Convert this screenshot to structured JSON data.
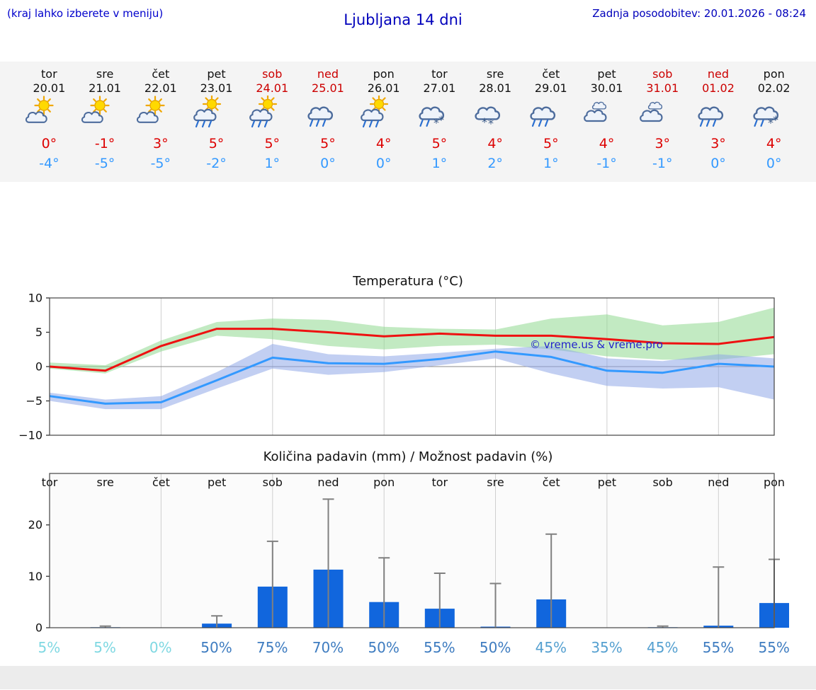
{
  "header": {
    "hint": "(kraj lahko izberete v meniju)",
    "title": "Ljubljana 14 dni",
    "updated": "Zadnja posodobitev: 20.01.2026 - 08:24"
  },
  "colors": {
    "link_blue": "#0000cc",
    "weekend_red": "#cc0000",
    "tmax_red": "#dd0000",
    "tmin_blue": "#3399ff",
    "bar_blue": "#1166dd",
    "whisker_gray": "#808080",
    "band_green": "#90d890",
    "band_blue": "#8fa8e8"
  },
  "days": [
    {
      "name": "tor",
      "date": "20.01",
      "weekend": false,
      "icon": "partly-sunny",
      "tmax": "0°",
      "tmin": "-4°"
    },
    {
      "name": "sre",
      "date": "21.01",
      "weekend": false,
      "icon": "partly-sunny",
      "tmax": "-1°",
      "tmin": "-5°"
    },
    {
      "name": "čet",
      "date": "22.01",
      "weekend": false,
      "icon": "partly-sunny",
      "tmax": "3°",
      "tmin": "-5°"
    },
    {
      "name": "pet",
      "date": "23.01",
      "weekend": false,
      "icon": "sun-rain",
      "tmax": "5°",
      "tmin": "-2°"
    },
    {
      "name": "sob",
      "date": "24.01",
      "weekend": true,
      "icon": "sun-rain",
      "tmax": "5°",
      "tmin": "1°"
    },
    {
      "name": "ned",
      "date": "25.01",
      "weekend": true,
      "icon": "rain",
      "tmax": "5°",
      "tmin": "0°"
    },
    {
      "name": "pon",
      "date": "26.01",
      "weekend": false,
      "icon": "sun-rain",
      "tmax": "4°",
      "tmin": "0°"
    },
    {
      "name": "tor",
      "date": "27.01",
      "weekend": false,
      "icon": "sleet",
      "tmax": "5°",
      "tmin": "1°"
    },
    {
      "name": "sre",
      "date": "28.01",
      "weekend": false,
      "icon": "snow",
      "tmax": "4°",
      "tmin": "2°"
    },
    {
      "name": "čet",
      "date": "29.01",
      "weekend": false,
      "icon": "rain",
      "tmax": "5°",
      "tmin": "1°"
    },
    {
      "name": "pet",
      "date": "30.01",
      "weekend": false,
      "icon": "cloudy",
      "tmax": "4°",
      "tmin": "-1°"
    },
    {
      "name": "sob",
      "date": "31.01",
      "weekend": true,
      "icon": "cloudy",
      "tmax": "3°",
      "tmin": "-1°"
    },
    {
      "name": "ned",
      "date": "01.02",
      "weekend": true,
      "icon": "rain",
      "tmax": "3°",
      "tmin": "0°"
    },
    {
      "name": "pon",
      "date": "02.02",
      "weekend": false,
      "icon": "sleet",
      "tmax": "4°",
      "tmin": "0°"
    }
  ],
  "chart_data": [
    {
      "type": "line",
      "title": "Temperatura (°C)",
      "categories": [
        "tor",
        "sre",
        "čet",
        "pet",
        "sob",
        "ned",
        "pon",
        "tor",
        "sre",
        "čet",
        "pet",
        "sob",
        "ned",
        "pon"
      ],
      "ylim": [
        -10,
        10
      ],
      "yticks": [
        -10,
        -5,
        0,
        5,
        10
      ],
      "grid": "vertical-every-2-days",
      "watermark": "© vreme.us & vreme.pro",
      "series": [
        {
          "name": "max-temperature",
          "color": "#ee1111",
          "values": [
            0,
            -0.6,
            3,
            5.5,
            5.5,
            5,
            4.4,
            4.8,
            4.5,
            4.5,
            4,
            3.4,
            3.3,
            4.3
          ]
        },
        {
          "name": "min-temperature",
          "color": "#3399ff",
          "values": [
            -4.3,
            -5.4,
            -5.2,
            -2,
            1.3,
            0.5,
            0.4,
            1.1,
            2.2,
            1.4,
            -0.6,
            -0.9,
            0.4,
            0
          ]
        }
      ],
      "bands": [
        {
          "name": "max-temperature-range",
          "color": "#90d890",
          "opacity": 0.55,
          "upper": [
            0.6,
            0.2,
            3.8,
            6.5,
            7,
            6.8,
            5.8,
            5.5,
            5.4,
            7,
            7.6,
            6,
            6.5,
            8.6
          ],
          "lower": [
            -0.3,
            -1,
            2.2,
            4.5,
            4,
            3,
            2.5,
            3,
            3.2,
            2.5,
            1.5,
            1,
            1,
            1.8
          ]
        },
        {
          "name": "min-temperature-range",
          "color": "#8fa8e8",
          "opacity": 0.55,
          "upper": [
            -3.8,
            -4.8,
            -4.3,
            -0.8,
            3.3,
            1.8,
            1.5,
            2,
            2.6,
            3,
            1.2,
            0.8,
            1.8,
            1.2
          ],
          "lower": [
            -5,
            -6.2,
            -6.2,
            -3.2,
            -0.3,
            -1.2,
            -0.8,
            0.2,
            1.2,
            -1,
            -2.8,
            -3.2,
            -3,
            -4.8
          ]
        }
      ]
    },
    {
      "type": "bar",
      "title": "Količina padavin (mm) / Možnost padavin (%)",
      "categories": [
        "tor",
        "sre",
        "čet",
        "pet",
        "sob",
        "ned",
        "pon",
        "tor",
        "sre",
        "čet",
        "pet",
        "sob",
        "ned",
        "pon"
      ],
      "ylim": [
        0,
        30
      ],
      "yticks": [
        0,
        10,
        20
      ],
      "bar_color": "#1166dd",
      "whisker_color": "#808080",
      "values": [
        0,
        0.1,
        0,
        0.8,
        8,
        11.3,
        5,
        3.7,
        0.2,
        5.5,
        0,
        0.1,
        0.4,
        4.8
      ],
      "whisker_max": [
        0,
        0.3,
        0,
        2.3,
        16.8,
        25,
        13.6,
        10.6,
        8.6,
        18.2,
        0,
        0.3,
        11.8,
        13.3
      ],
      "probabilities": [
        {
          "value": "5%",
          "level": "low"
        },
        {
          "value": "5%",
          "level": "low"
        },
        {
          "value": "0%",
          "level": "low"
        },
        {
          "value": "50%",
          "level": "high"
        },
        {
          "value": "75%",
          "level": "high"
        },
        {
          "value": "70%",
          "level": "high"
        },
        {
          "value": "50%",
          "level": "high"
        },
        {
          "value": "55%",
          "level": "high"
        },
        {
          "value": "50%",
          "level": "high"
        },
        {
          "value": "45%",
          "level": "mid"
        },
        {
          "value": "35%",
          "level": "mid"
        },
        {
          "value": "45%",
          "level": "mid"
        },
        {
          "value": "55%",
          "level": "high"
        },
        {
          "value": "55%",
          "level": "high"
        }
      ]
    }
  ]
}
